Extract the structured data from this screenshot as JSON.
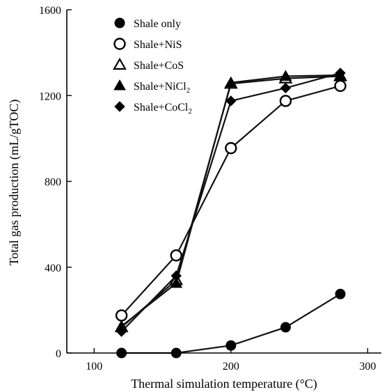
{
  "chart_data": {
    "type": "line",
    "xlabel": "Thermal simulation temperature (°C)",
    "ylabel": "Total gas production (mL/gTOC)",
    "xlim": [
      80,
      310
    ],
    "ylim": [
      0,
      1600
    ],
    "x_ticks": [
      100,
      200,
      300
    ],
    "y_ticks": [
      0,
      400,
      800,
      1200,
      1600
    ],
    "x_tick_labels": [
      "100",
      "200",
      "300"
    ],
    "y_tick_labels": [
      "0",
      "400",
      "800",
      "1200",
      "1600"
    ],
    "legend_position": "top-center",
    "grid": false,
    "x": [
      120,
      160,
      200,
      240,
      280
    ],
    "series": [
      {
        "name": "Shale only",
        "name_main": "Shale only",
        "name_sub": "",
        "marker": "filled-circle",
        "values": [
          0,
          0,
          35,
          120,
          275
        ]
      },
      {
        "name": "Shale+NiS",
        "name_main": "Shale+NiS",
        "name_sub": "",
        "marker": "open-circle",
        "values": [
          175,
          455,
          955,
          1175,
          1245
        ]
      },
      {
        "name": "Shale+CoS",
        "name_main": "Shale+CoS",
        "name_sub": "",
        "marker": "open-triangle",
        "values": [
          120,
          340,
          1255,
          1280,
          1290
        ]
      },
      {
        "name": "Shale+NiCl2",
        "name_main": "Shale+NiCl",
        "name_sub": "2",
        "marker": "filled-triangle",
        "values": [
          125,
          325,
          1260,
          1290,
          1295
        ]
      },
      {
        "name": "Shale+CoCl2",
        "name_main": "Shale+CoCl",
        "name_sub": "2",
        "marker": "filled-diamond",
        "values": [
          100,
          360,
          1175,
          1235,
          1305
        ]
      }
    ]
  }
}
